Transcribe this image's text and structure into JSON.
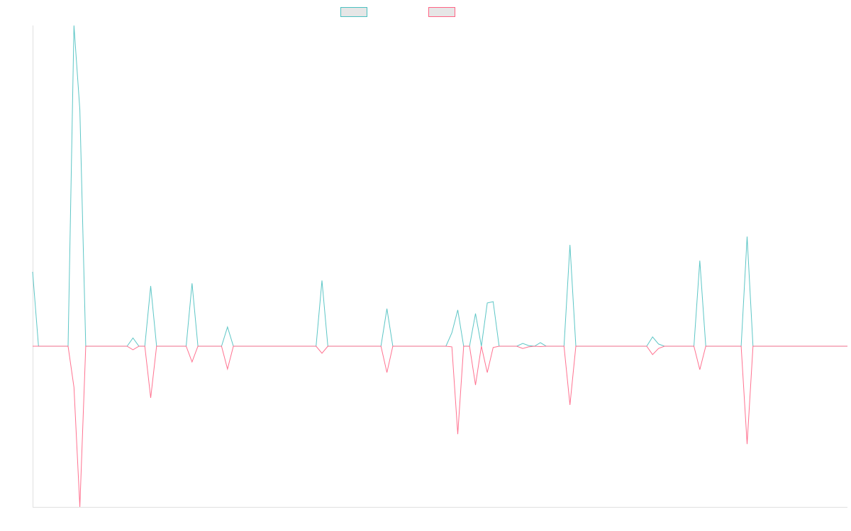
{
  "chart_data": {
    "type": "line",
    "title": "",
    "xlabel": "",
    "ylabel": "",
    "x_count": 139,
    "xlim": [
      0,
      138
    ],
    "ylim": [
      -50.1,
      100
    ],
    "grid": false,
    "legend_position": "top-center",
    "series": [
      {
        "name": "",
        "color": "#4bc0c0",
        "points": [
          [
            0,
            23.2
          ],
          [
            7,
            100
          ],
          [
            8,
            73.7
          ],
          [
            17,
            2.6
          ],
          [
            20,
            18.8
          ],
          [
            27,
            19.6
          ],
          [
            33,
            6.0
          ],
          [
            49,
            20.5
          ],
          [
            60,
            11.7
          ],
          [
            71,
            4.2
          ],
          [
            72,
            11.3
          ],
          [
            75,
            10.2
          ],
          [
            77,
            13.5
          ],
          [
            78,
            13.9
          ],
          [
            83,
            0.9
          ],
          [
            84,
            0.2
          ],
          [
            86,
            1.1
          ],
          [
            91,
            31.6
          ],
          [
            105,
            2.9
          ],
          [
            106,
            0.7
          ],
          [
            113,
            26.7
          ],
          [
            121,
            34.2
          ]
        ]
      },
      {
        "name": "",
        "color": "#ff6384",
        "points": [
          [
            7,
            -12.8
          ],
          [
            8,
            -50.1
          ],
          [
            17,
            -1.1
          ],
          [
            20,
            -16.1
          ],
          [
            27,
            -4.9
          ],
          [
            33,
            -7.1
          ],
          [
            49,
            -2.2
          ],
          [
            60,
            -8.2
          ],
          [
            71,
            -0.2
          ],
          [
            72,
            -27.4
          ],
          [
            75,
            -12.1
          ],
          [
            77,
            -8.2
          ],
          [
            78,
            -0.4
          ],
          [
            83,
            -0.7
          ],
          [
            84,
            -0.2
          ],
          [
            86,
            -0.1
          ],
          [
            91,
            -18.3
          ],
          [
            105,
            -2.6
          ],
          [
            106,
            -0.7
          ],
          [
            113,
            -7.3
          ],
          [
            121,
            -30.5
          ]
        ]
      }
    ]
  }
}
